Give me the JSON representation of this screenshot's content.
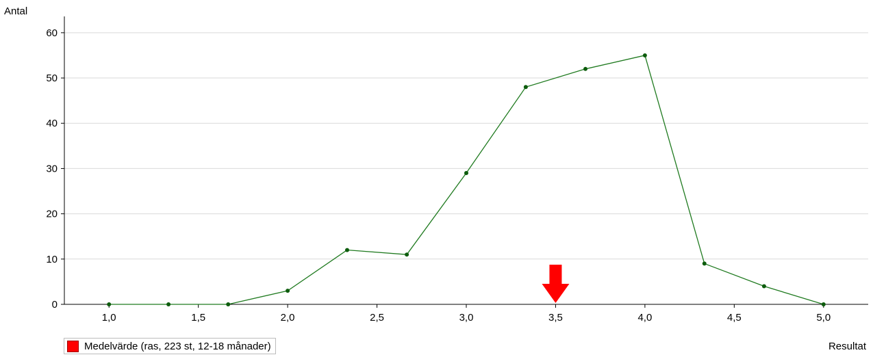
{
  "chart_data": {
    "type": "line",
    "ylabel": "Antal",
    "xlabel": "Resultat",
    "xlim": [
      0.75,
      5.25
    ],
    "ylim": [
      0,
      63
    ],
    "xticks": [
      "1,0",
      "1,5",
      "2,0",
      "2,5",
      "3,0",
      "3,5",
      "4,0",
      "4,5",
      "5,0"
    ],
    "xtick_values": [
      1.0,
      1.5,
      2.0,
      2.5,
      3.0,
      3.5,
      4.0,
      4.5,
      5.0
    ],
    "yticks": [
      "0",
      "10",
      "20",
      "30",
      "40",
      "50",
      "60"
    ],
    "ytick_values": [
      0,
      10,
      20,
      30,
      40,
      50,
      60
    ],
    "grid": "horizontal",
    "series": [
      {
        "color": "#1f7a1f",
        "x": [
          1.0,
          1.333,
          1.667,
          2.0,
          2.333,
          2.667,
          3.0,
          3.333,
          3.667,
          4.0,
          4.333,
          4.667,
          5.0
        ],
        "values": [
          0,
          0,
          0,
          3,
          12,
          11,
          29,
          48,
          52,
          55,
          9,
          4,
          0
        ]
      }
    ],
    "marker": {
      "x": 3.5,
      "color": "#ff0000",
      "shape": "down-arrow"
    },
    "legend": {
      "label": "Medelvärde (ras, 223 st, 12-18 månader)",
      "color": "#ff0000",
      "placement": "bottom-left"
    }
  }
}
